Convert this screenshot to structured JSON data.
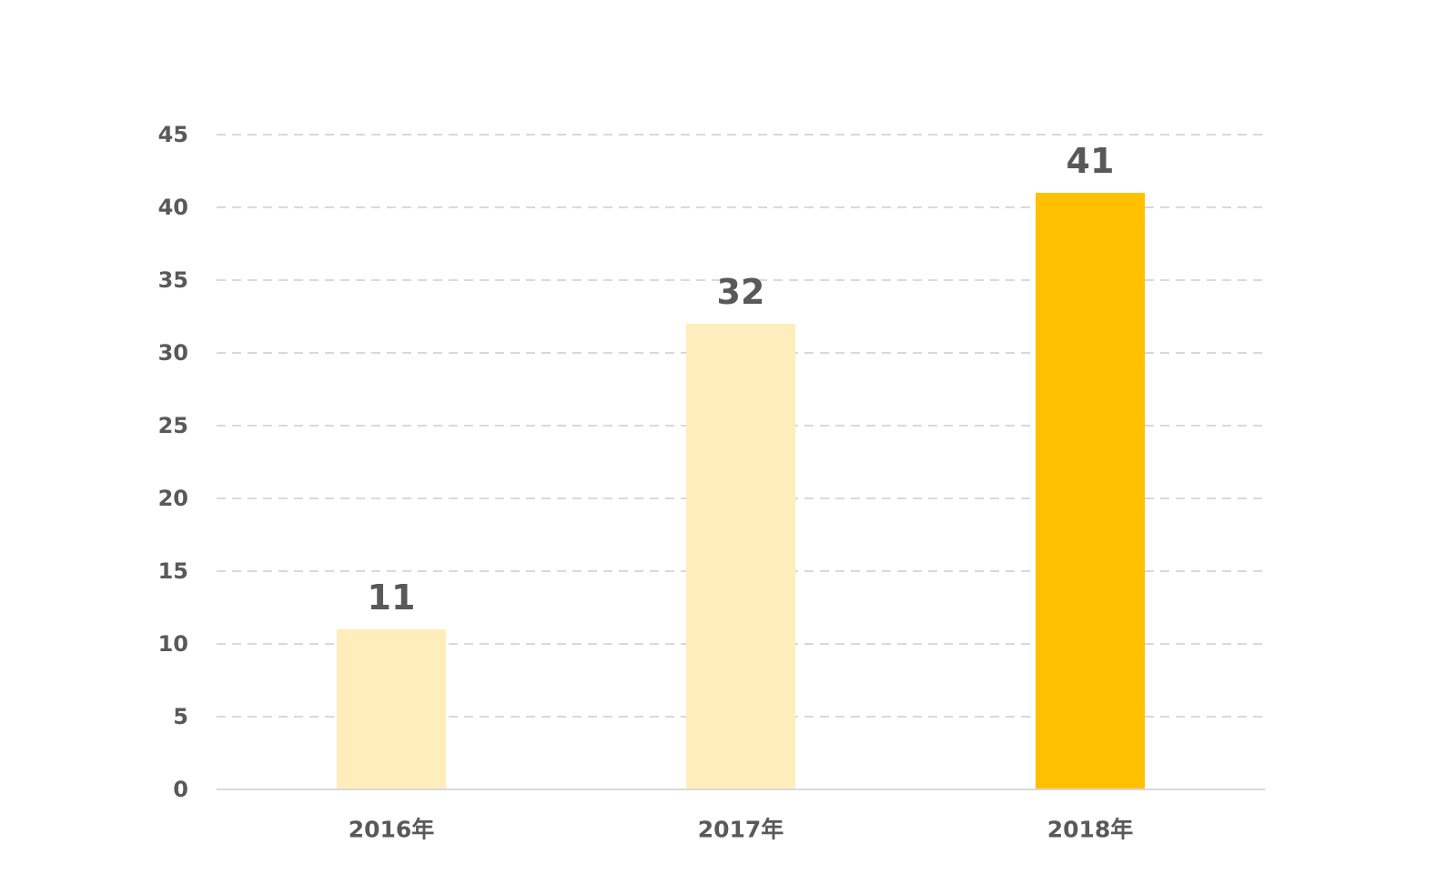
{
  "chart_data": {
    "type": "bar",
    "categories": [
      "2016年",
      "2017年",
      "2018年"
    ],
    "values": [
      11,
      32,
      41
    ],
    "bar_colors": [
      "#FFEEBB",
      "#FFEEBB",
      "#FFC000"
    ],
    "yticks": [
      "0",
      "5",
      "10",
      "15",
      "20",
      "25",
      "30",
      "35",
      "40",
      "45"
    ],
    "ylim": [
      0,
      45
    ],
    "grid": true,
    "title": "",
    "xlabel": "",
    "ylabel": "",
    "colors": {
      "text": "#595959",
      "grid": "#D9D9D9"
    }
  }
}
